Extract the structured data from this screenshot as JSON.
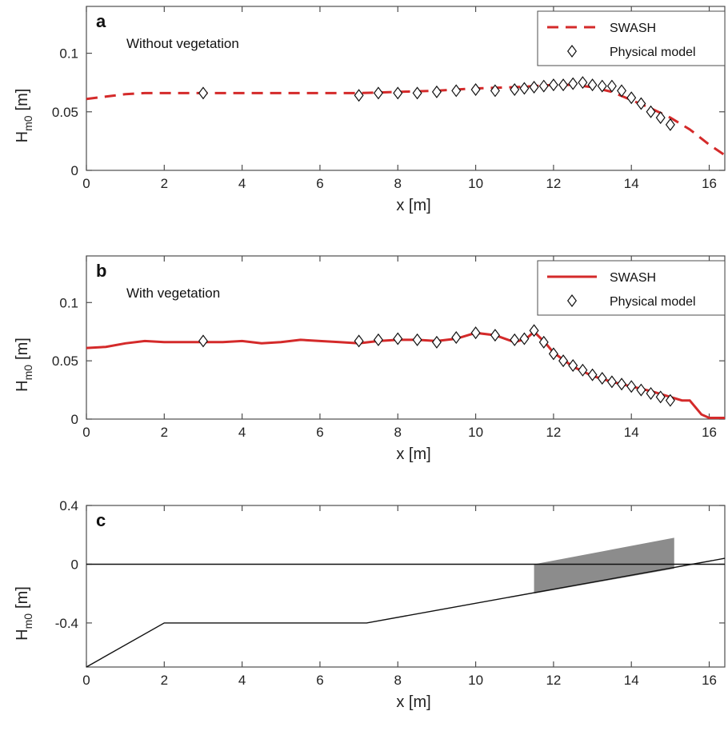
{
  "chart_data": [
    {
      "type": "line",
      "panel_label": "a",
      "annotation": "Without vegetation",
      "xlabel": "x [m]",
      "ylabel": "H",
      "ylabel_sub": "m0",
      "ylabel_unit": "[m]",
      "xlim": [
        0,
        16.4
      ],
      "ylim": [
        0,
        0.14
      ],
      "xticks": [
        0,
        2,
        4,
        6,
        8,
        10,
        12,
        14,
        16
      ],
      "xtick_labels": [
        "0",
        "2",
        "4",
        "6",
        "8",
        "10",
        "12",
        "14",
        "16"
      ],
      "yticks": [
        0,
        0.05,
        0.1
      ],
      "ytick_labels": [
        "0",
        "0.05",
        "0.1"
      ],
      "legend_position": "top-right",
      "series": [
        {
          "name": "SWASH",
          "style": "dashed",
          "color": "#d42a2a",
          "x": [
            0,
            0.5,
            1,
            1.5,
            2,
            3,
            4,
            5,
            6,
            7,
            8,
            9,
            10,
            11,
            11.5,
            12,
            12.5,
            13,
            13.5,
            14,
            14.5,
            15,
            15.5,
            16,
            16.4
          ],
          "y": [
            0.061,
            0.063,
            0.065,
            0.066,
            0.066,
            0.066,
            0.066,
            0.066,
            0.066,
            0.066,
            0.067,
            0.068,
            0.07,
            0.071,
            0.072,
            0.073,
            0.073,
            0.071,
            0.067,
            0.06,
            0.053,
            0.045,
            0.035,
            0.022,
            0.013
          ]
        },
        {
          "name": "Physical model",
          "style": "markers",
          "marker": "diamond",
          "color": "#111111",
          "x": [
            3,
            7,
            7.5,
            8,
            8.5,
            9,
            9.5,
            10,
            10.5,
            11,
            11.25,
            11.5,
            11.75,
            12,
            12.25,
            12.5,
            12.75,
            13,
            13.25,
            13.5,
            13.75,
            14,
            14.25,
            14.5,
            14.75,
            15
          ],
          "y": [
            0.066,
            0.064,
            0.066,
            0.066,
            0.066,
            0.067,
            0.068,
            0.069,
            0.068,
            0.069,
            0.07,
            0.071,
            0.072,
            0.073,
            0.073,
            0.074,
            0.075,
            0.073,
            0.072,
            0.072,
            0.068,
            0.062,
            0.057,
            0.05,
            0.045,
            0.039
          ]
        }
      ]
    },
    {
      "type": "line",
      "panel_label": "b",
      "annotation": "With vegetation",
      "xlabel": "x [m]",
      "ylabel": "H",
      "ylabel_sub": "m0",
      "ylabel_unit": "[m]",
      "xlim": [
        0,
        16.4
      ],
      "ylim": [
        0,
        0.14
      ],
      "xticks": [
        0,
        2,
        4,
        6,
        8,
        10,
        12,
        14,
        16
      ],
      "xtick_labels": [
        "0",
        "2",
        "4",
        "6",
        "8",
        "10",
        "12",
        "14",
        "16"
      ],
      "yticks": [
        0,
        0.05,
        0.1
      ],
      "ytick_labels": [
        "0",
        "0.05",
        "0.1"
      ],
      "legend_position": "top-right",
      "series": [
        {
          "name": "SWASH",
          "style": "solid",
          "color": "#d42a2a",
          "x": [
            0,
            0.5,
            1,
            1.5,
            2,
            2.5,
            3,
            3.5,
            4,
            4.5,
            5,
            5.5,
            6,
            6.5,
            7,
            7.5,
            8,
            8.5,
            9,
            9.5,
            10,
            10.5,
            11,
            11.3,
            11.5,
            11.8,
            12,
            12.5,
            13,
            13.5,
            14,
            14.5,
            15,
            15.3,
            15.5,
            15.8,
            16,
            16.4
          ],
          "y": [
            0.061,
            0.062,
            0.065,
            0.067,
            0.066,
            0.066,
            0.066,
            0.066,
            0.067,
            0.065,
            0.066,
            0.068,
            0.067,
            0.066,
            0.065,
            0.067,
            0.068,
            0.068,
            0.067,
            0.069,
            0.074,
            0.072,
            0.066,
            0.069,
            0.075,
            0.065,
            0.057,
            0.045,
            0.037,
            0.032,
            0.028,
            0.024,
            0.019,
            0.016,
            0.016,
            0.004,
            0.001,
            0.001
          ]
        },
        {
          "name": "Physical model",
          "style": "markers",
          "marker": "diamond",
          "color": "#111111",
          "x": [
            3,
            7,
            7.5,
            8,
            8.5,
            9,
            9.5,
            10,
            10.5,
            11,
            11.25,
            11.5,
            11.75,
            12,
            12.25,
            12.5,
            12.75,
            13,
            13.25,
            13.5,
            13.75,
            14,
            14.25,
            14.5,
            14.75,
            15
          ],
          "y": [
            0.067,
            0.067,
            0.068,
            0.069,
            0.068,
            0.066,
            0.07,
            0.074,
            0.072,
            0.068,
            0.069,
            0.076,
            0.066,
            0.056,
            0.05,
            0.046,
            0.042,
            0.038,
            0.035,
            0.032,
            0.03,
            0.028,
            0.025,
            0.022,
            0.019,
            0.016
          ]
        }
      ]
    },
    {
      "type": "line",
      "panel_label": "c",
      "xlabel": "x [m]",
      "ylabel": "H",
      "ylabel_sub": "m0",
      "ylabel_unit": "[m]",
      "xlim": [
        0,
        16.4
      ],
      "ylim": [
        -0.7,
        0.4
      ],
      "xticks": [
        0,
        2,
        4,
        6,
        8,
        10,
        12,
        14,
        16
      ],
      "xtick_labels": [
        "0",
        "2",
        "4",
        "6",
        "8",
        "10",
        "12",
        "14",
        "16"
      ],
      "yticks": [
        -0.4,
        0,
        0.4
      ],
      "ytick_labels": [
        "-0.4",
        "0",
        "0.4"
      ],
      "series": [
        {
          "style": "solid",
          "color": "#111111",
          "x": [
            0,
            16.4
          ],
          "y": [
            0,
            0
          ]
        },
        {
          "style": "solid",
          "color": "#111111",
          "x": [
            0,
            2,
            7.2,
            16.4
          ],
          "y": [
            -0.7,
            -0.4,
            -0.4,
            0.04
          ]
        }
      ],
      "fill": {
        "color": "#8c8c8c",
        "x": [
          11.5,
          15.1,
          15.1,
          11.5
        ],
        "y": [
          -0.2,
          -0.03,
          0.18,
          0.0
        ]
      }
    }
  ],
  "colors": {
    "swash": "#d42a2a",
    "markers": "#111111",
    "vegetation": "#8c8c8c"
  }
}
